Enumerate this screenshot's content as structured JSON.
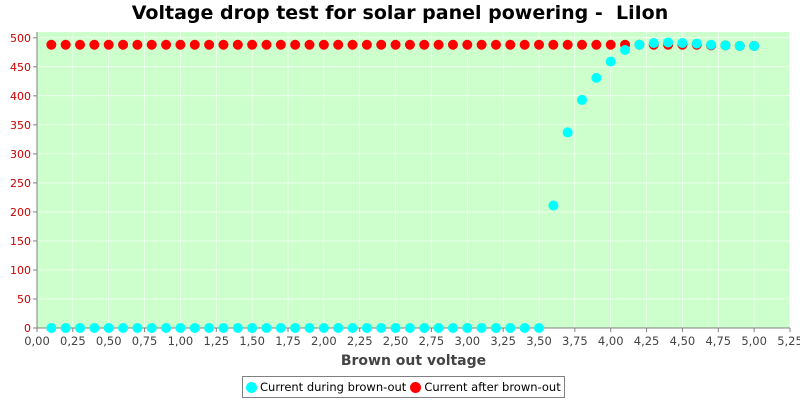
{
  "chart_data": {
    "type": "scatter",
    "title": "Voltage drop test for solar panel powering -  LiIon",
    "xlabel": "Brown out voltage",
    "ylabel": "",
    "xlim": [
      0,
      5.25
    ],
    "ylim": [
      0,
      510
    ],
    "x_ticks": [
      "0,00",
      "0,25",
      "0,50",
      "0,75",
      "1,00",
      "1,25",
      "1,50",
      "1,75",
      "2,00",
      "2,25",
      "2,50",
      "2,75",
      "3,00",
      "3,25",
      "3,50",
      "3,75",
      "4,00",
      "4,25",
      "4,50",
      "4,75",
      "5,00",
      "5,25"
    ],
    "y_ticks": [
      "0",
      "50",
      "100",
      "150",
      "200",
      "250",
      "300",
      "350",
      "400",
      "450",
      "500"
    ],
    "grid": true,
    "legend_position": "bottom",
    "background_color": "#ccffcc",
    "series": [
      {
        "name": "Current after brown-out",
        "color": "#ff0000",
        "x": [
          0.1,
          0.2,
          0.3,
          0.4,
          0.5,
          0.6,
          0.7,
          0.8,
          0.9,
          1.0,
          1.1,
          1.2,
          1.3,
          1.4,
          1.5,
          1.6,
          1.7,
          1.8,
          1.9,
          2.0,
          2.1,
          2.2,
          2.3,
          2.4,
          2.5,
          2.6,
          2.7,
          2.8,
          2.9,
          3.0,
          3.1,
          3.2,
          3.3,
          3.4,
          3.5,
          3.6,
          3.7,
          3.8,
          3.9,
          4.0,
          4.1,
          4.2,
          4.3,
          4.4,
          4.5,
          4.6,
          4.7,
          4.8,
          4.9,
          5.0
        ],
        "y": [
          488,
          488,
          488,
          488,
          488,
          488,
          488,
          488,
          488,
          488,
          488,
          488,
          488,
          488,
          488,
          488,
          488,
          488,
          488,
          488,
          488,
          488,
          488,
          488,
          488,
          488,
          488,
          488,
          488,
          488,
          488,
          488,
          488,
          488,
          488,
          488,
          488,
          488,
          488,
          488,
          488,
          488,
          488,
          488,
          488,
          488,
          487,
          487,
          486,
          486
        ]
      },
      {
        "name": "Current during brown-out",
        "color": "#00ffff",
        "x": [
          0.1,
          0.2,
          0.3,
          0.4,
          0.5,
          0.6,
          0.7,
          0.8,
          0.9,
          1.0,
          1.1,
          1.2,
          1.3,
          1.4,
          1.5,
          1.6,
          1.7,
          1.8,
          1.9,
          2.0,
          2.1,
          2.2,
          2.3,
          2.4,
          2.5,
          2.6,
          2.7,
          2.8,
          2.9,
          3.0,
          3.1,
          3.2,
          3.3,
          3.4,
          3.5,
          3.6,
          3.7,
          3.8,
          3.9,
          4.0,
          4.1,
          4.2,
          4.3,
          4.4,
          4.5,
          4.6,
          4.7,
          4.8,
          4.9,
          5.0
        ],
        "y": [
          0,
          0,
          0,
          0,
          0,
          0,
          0,
          0,
          0,
          0,
          0,
          0,
          0,
          0,
          0,
          0,
          0,
          0,
          0,
          0,
          0,
          0,
          0,
          0,
          0,
          0,
          0,
          0,
          0,
          0,
          0,
          0,
          0,
          0,
          0,
          211,
          337,
          393,
          431,
          459,
          479,
          488,
          491,
          492,
          491,
          490,
          488,
          487,
          486,
          486
        ]
      }
    ],
    "legend_order": [
      "Current during brown-out",
      "Current after brown-out"
    ]
  }
}
